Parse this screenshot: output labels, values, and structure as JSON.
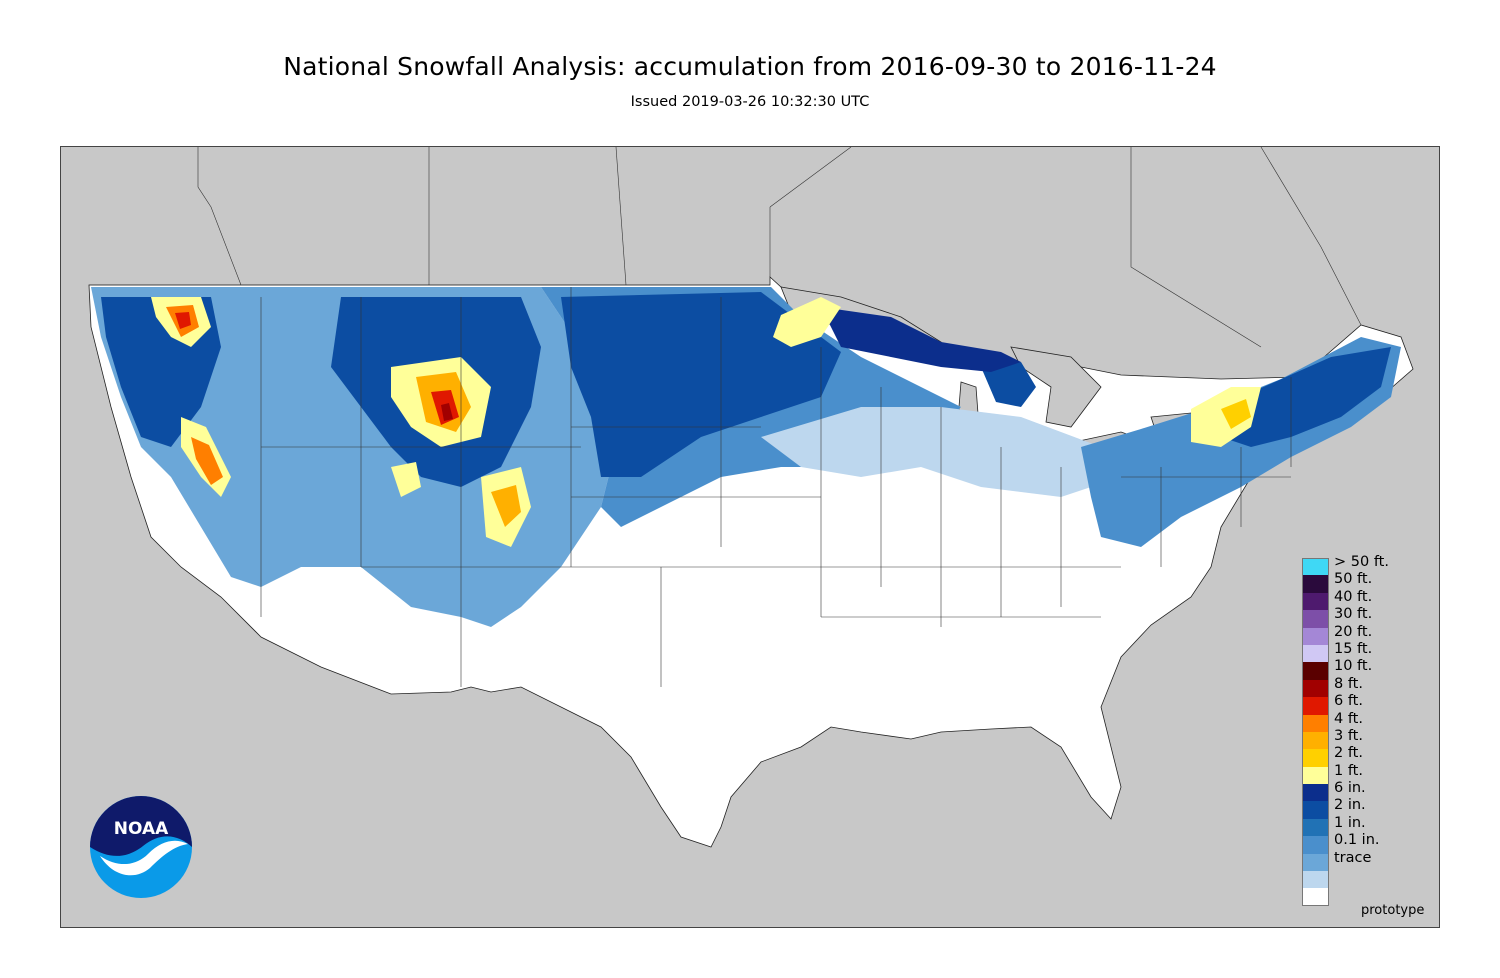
{
  "header": {
    "title": "National Snowfall Analysis: accumulation from 2016-09-30 to 2016-11-24",
    "issued": "Issued 2019-03-26 10:32:30 UTC"
  },
  "map": {
    "background_color": "#c8c8c8",
    "land_color": "#ffffff",
    "watermark": "prototype"
  },
  "legend": {
    "items": [
      {
        "label": "> 50 ft.",
        "color": "#3fd8f5"
      },
      {
        "label": "50 ft.",
        "color": "#2a0a3c"
      },
      {
        "label": "40 ft.",
        "color": "#4e1a6e"
      },
      {
        "label": "30 ft.",
        "color": "#7d4fa8"
      },
      {
        "label": "20 ft.",
        "color": "#a487d6"
      },
      {
        "label": "15 ft.",
        "color": "#d0c8f4"
      },
      {
        "label": "10 ft.",
        "color": "#5a0000"
      },
      {
        "label": "8 ft.",
        "color": "#a10000"
      },
      {
        "label": "6 ft.",
        "color": "#e01800"
      },
      {
        "label": "4 ft.",
        "color": "#ff7f00"
      },
      {
        "label": "3 ft.",
        "color": "#ffb000"
      },
      {
        "label": "2 ft.",
        "color": "#ffd000"
      },
      {
        "label": "1 ft.",
        "color": "#ffff99"
      },
      {
        "label": "6 in.",
        "color": "#0c2e8c"
      },
      {
        "label": "2 in.",
        "color": "#0c4da2"
      },
      {
        "label": "1 in.",
        "color": "#2172b5"
      },
      {
        "label": "0.1 in.",
        "color": "#4a8fcc"
      },
      {
        "label": "trace",
        "color": "#6ba7d8"
      },
      {
        "label": "",
        "color": "#bdd7ee"
      },
      {
        "label": "",
        "color": "#ffffff"
      }
    ]
  },
  "logo": {
    "text": "NOAA",
    "colors": {
      "navy": "#0f1a6a",
      "sky": "#0a9ae8",
      "white": "#ffffff"
    }
  }
}
